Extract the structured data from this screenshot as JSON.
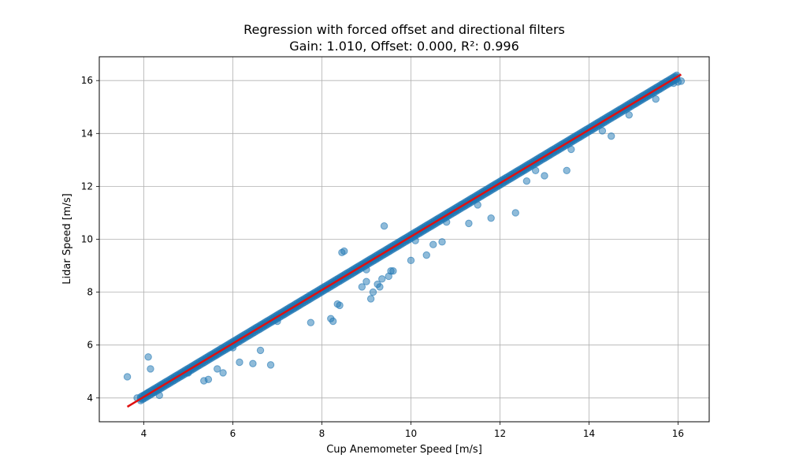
{
  "chart_data": {
    "type": "scatter",
    "title": "Regression with forced offset and directional filters",
    "subtitle": "Gain: 1.010, Offset: 0.000, R²: 0.996",
    "xlabel": "Cup Anemometer Speed [m/s]",
    "ylabel": "Lidar Speed [m/s]",
    "xlim": [
      3.0,
      16.7
    ],
    "ylim": [
      3.1,
      16.9
    ],
    "xticks": [
      4,
      6,
      8,
      10,
      12,
      14,
      16
    ],
    "yticks": [
      4,
      6,
      8,
      10,
      12,
      14,
      16
    ],
    "grid": true,
    "legend": "none",
    "colors": {
      "points": "#1f77b4",
      "fit_line": "#e01010",
      "grid": "#b0b0b0"
    },
    "fit": {
      "gain": 1.01,
      "offset": 0.0,
      "x_start": 3.63,
      "x_end": 16.07
    },
    "series": [
      {
        "kind": "points",
        "x": [
          3.63,
          3.85,
          4.0,
          4.05,
          4.1,
          4.15,
          4.2,
          4.25,
          4.3,
          4.35,
          4.4,
          4.5,
          4.6,
          4.7,
          4.8,
          4.9,
          5.0,
          5.1,
          5.2,
          5.3,
          5.4,
          5.5,
          5.6,
          5.7,
          5.8,
          5.9,
          6.0,
          6.1,
          6.2,
          6.3,
          6.4,
          6.5,
          6.6,
          6.7,
          6.8,
          6.9,
          7.0,
          7.1,
          7.2,
          7.3,
          7.4,
          7.5,
          7.6,
          7.7,
          7.8,
          7.9,
          8.0,
          8.1,
          8.2,
          8.3,
          8.4,
          8.5,
          8.6,
          8.7,
          8.8,
          8.9,
          9.0,
          9.1,
          9.2,
          9.3,
          9.4,
          9.5,
          9.6,
          9.7,
          9.8,
          9.9,
          10.0,
          10.1,
          10.2,
          10.3,
          10.4,
          10.5,
          10.6,
          10.7,
          10.8,
          10.9,
          11.0,
          11.1,
          11.2,
          11.3,
          11.4,
          11.5,
          11.6,
          11.7,
          11.8,
          11.9,
          12.0,
          12.1,
          12.2,
          12.3,
          12.4,
          12.5,
          12.6,
          12.7,
          12.8,
          12.9,
          13.0,
          13.1,
          13.2,
          13.3,
          13.4,
          13.5,
          13.6,
          13.7,
          13.8,
          13.9,
          14.0,
          14.1,
          14.2,
          14.3,
          14.4,
          14.5,
          14.6,
          14.7,
          14.8,
          14.9,
          15.0,
          15.1,
          15.2,
          15.3,
          15.4,
          15.5,
          15.6,
          15.7,
          15.8,
          15.9,
          16.0,
          16.07,
          4.02,
          4.1,
          4.35,
          5.35,
          5.45,
          5.65,
          5.78,
          6.15,
          6.45,
          6.62,
          6.85,
          7.75,
          8.2,
          8.25,
          8.35,
          8.4,
          8.45,
          8.5,
          8.75,
          8.9,
          9.0,
          9.1,
          9.15,
          9.25,
          9.3,
          9.35,
          9.4,
          9.5,
          9.55,
          9.6,
          10.0,
          10.35,
          10.5,
          10.7,
          11.3,
          11.8,
          12.35,
          12.5,
          12.6,
          13.0,
          13.5,
          14.5,
          5.0,
          6.0,
          7.0,
          9.0,
          10.1,
          10.8,
          11.5,
          12.8,
          13.6,
          14.3,
          14.9,
          15.5
        ],
        "y": [
          4.8,
          4.0,
          4.05,
          4.1,
          5.55,
          5.1,
          4.2,
          4.3,
          4.35,
          4.4,
          4.45,
          4.55,
          4.65,
          4.75,
          4.85,
          4.95,
          5.05,
          5.15,
          5.25,
          5.35,
          5.45,
          5.55,
          5.65,
          5.75,
          5.85,
          5.95,
          6.06,
          6.16,
          6.26,
          6.36,
          6.46,
          6.57,
          6.67,
          6.77,
          6.87,
          6.97,
          7.07,
          7.17,
          7.27,
          7.37,
          7.47,
          7.58,
          7.68,
          7.78,
          7.88,
          7.98,
          8.08,
          8.18,
          8.28,
          8.38,
          8.48,
          8.59,
          8.69,
          8.79,
          8.89,
          8.99,
          9.09,
          9.19,
          9.29,
          9.39,
          9.49,
          9.6,
          9.7,
          9.8,
          9.9,
          10.0,
          10.1,
          10.2,
          10.3,
          10.4,
          10.5,
          10.61,
          10.71,
          10.81,
          10.91,
          11.01,
          11.11,
          11.21,
          11.31,
          11.41,
          11.51,
          11.62,
          11.72,
          11.82,
          11.92,
          12.02,
          12.12,
          12.22,
          12.32,
          12.42,
          12.52,
          12.63,
          12.73,
          12.83,
          12.93,
          13.03,
          13.13,
          13.23,
          13.33,
          13.43,
          13.53,
          13.64,
          13.74,
          13.84,
          13.94,
          14.04,
          14.14,
          14.24,
          14.34,
          14.44,
          14.54,
          14.65,
          14.75,
          14.85,
          14.95,
          15.05,
          15.15,
          15.25,
          15.35,
          15.45,
          15.55,
          15.66,
          15.76,
          15.86,
          15.96,
          15.9,
          15.95,
          15.98,
          4.1,
          4.2,
          4.1,
          4.65,
          4.7,
          5.1,
          4.95,
          5.35,
          5.3,
          5.8,
          5.25,
          6.85,
          7.0,
          6.9,
          7.55,
          7.5,
          9.5,
          9.55,
          8.8,
          8.2,
          8.4,
          7.75,
          8.0,
          8.3,
          8.2,
          8.5,
          10.5,
          8.6,
          8.8,
          8.8,
          9.2,
          9.4,
          9.8,
          9.9,
          10.6,
          10.8,
          11.0,
          12.6,
          12.2,
          12.4,
          12.6,
          13.9,
          4.95,
          5.9,
          6.9,
          8.85,
          9.95,
          10.65,
          11.3,
          12.6,
          13.4,
          14.1,
          14.7,
          15.3
        ]
      }
    ]
  }
}
